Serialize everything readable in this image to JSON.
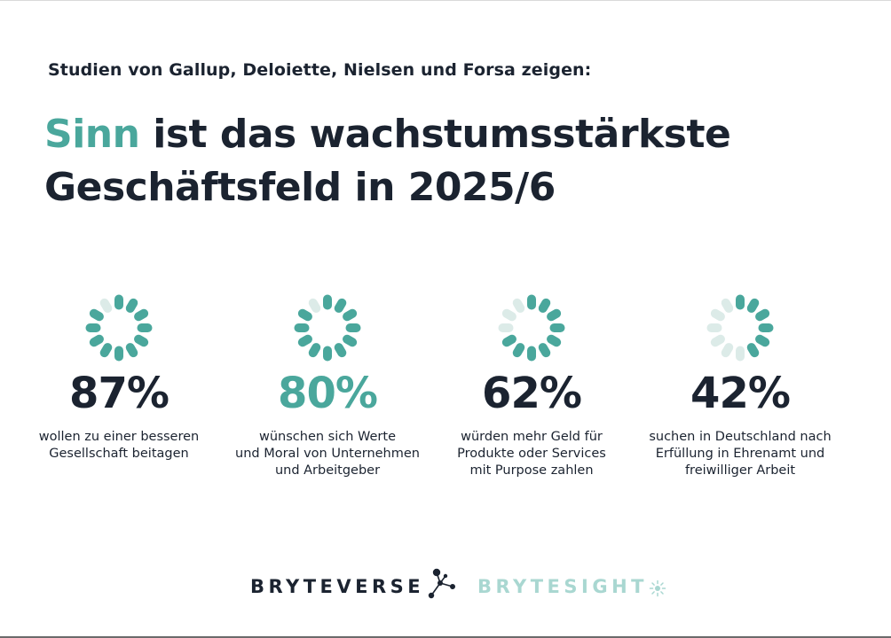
{
  "subtitle": "Studien von Gallup, Deloiette, Nielsen und Forsa zeigen:",
  "headline": {
    "accent_word": "Sinn",
    "line1_rest": "ist das wachstumsstärkste",
    "line2": "Geschäftsfeld in 2025/6"
  },
  "stats": [
    {
      "percent_label": "87%",
      "filled_segments": 11,
      "total_segments": 12,
      "text_lines": [
        "wollen zu einer besseren",
        "Gesellschaft beitagen"
      ]
    },
    {
      "percent_label": "80%",
      "filled_segments": 11,
      "total_segments": 12,
      "text_lines": [
        "wünschen sich Werte",
        "und Moral von Unternehmen",
        "und Arbeitgeber"
      ]
    },
    {
      "percent_label": "62%",
      "filled_segments": 9,
      "total_segments": 12,
      "text_lines": [
        "würden mehr Geld für",
        "Produkte oder Services",
        "mit Purpose zahlen"
      ]
    },
    {
      "percent_label": "42%",
      "filled_segments": 6,
      "total_segments": 12,
      "text_lines": [
        "suchen in Deutschland nach",
        "Erfüllung in Ehrenamt und",
        "freiwilliger Arbeit"
      ]
    }
  ],
  "brands": {
    "primary": "BRYTEVERSE",
    "secondary": "BRYTESIGHT"
  },
  "colors": {
    "accent": "#4aa79c",
    "accent_light": "#dcebe8",
    "text": "#1b2330",
    "brand_secondary": "#a9d7d1"
  },
  "icons": [
    "spinner-icon",
    "molecule-logo-icon",
    "sun-logo-icon"
  ]
}
